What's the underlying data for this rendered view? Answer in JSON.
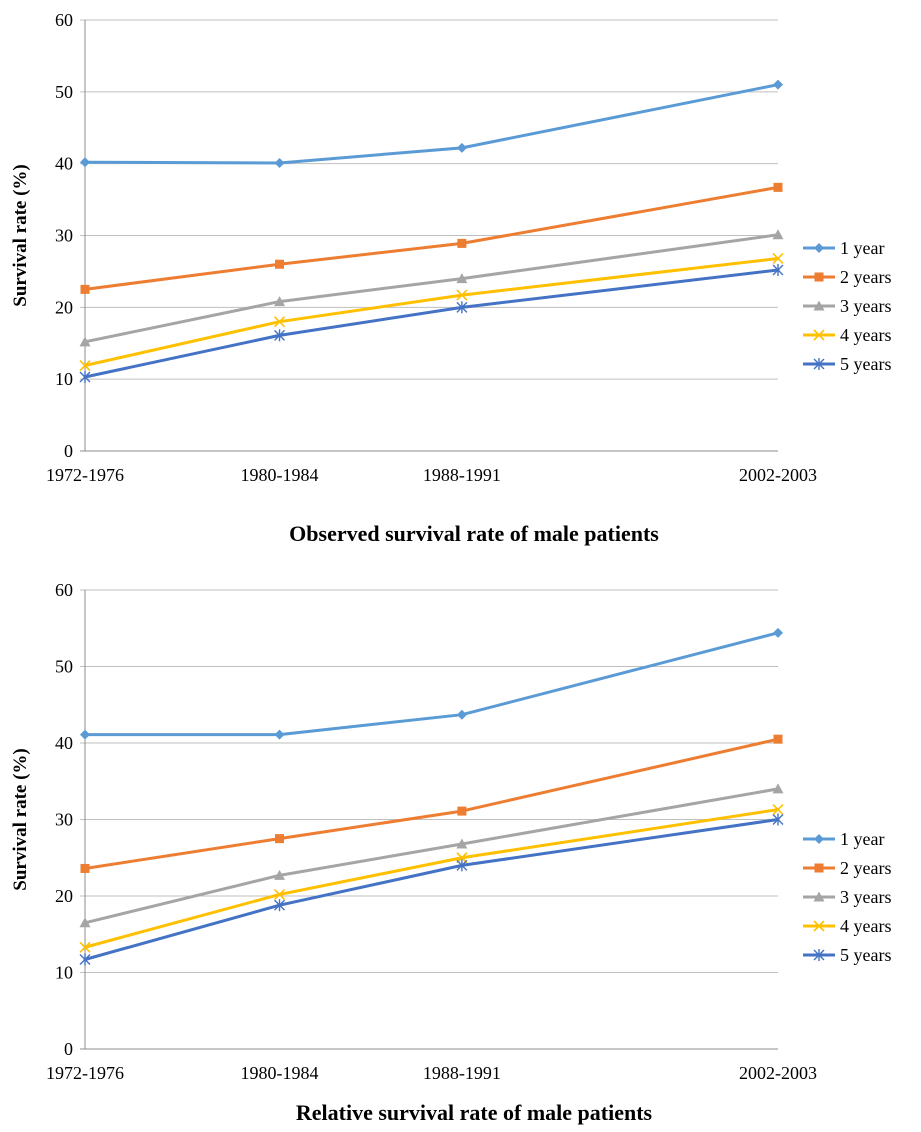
{
  "chart_data": [
    {
      "type": "line",
      "title": "Observed survival rate of male patients",
      "xlabel": "",
      "ylabel": "Survival rate (%)",
      "x": [
        1974,
        1982,
        1989.5,
        2002.5
      ],
      "categories": [
        "1972-1976",
        "1980-1984",
        "1988-1991",
        "2002-2003"
      ],
      "ylim": [
        0,
        60
      ],
      "yticks": [
        0,
        10,
        20,
        30,
        40,
        50,
        60
      ],
      "grid": true,
      "legend": "right",
      "series": [
        {
          "name": "1 year",
          "values": [
            40.2,
            40.1,
            42.2,
            51.0
          ],
          "color": "#5B9BD5",
          "marker": "diamond"
        },
        {
          "name": "2 years",
          "values": [
            22.5,
            26.0,
            28.9,
            36.7
          ],
          "color": "#ED7D31",
          "marker": "square"
        },
        {
          "name": "3 years",
          "values": [
            15.2,
            20.8,
            24.0,
            30.1
          ],
          "color": "#A5A5A5",
          "marker": "triangle"
        },
        {
          "name": "4 years",
          "values": [
            11.9,
            18.0,
            21.7,
            26.8
          ],
          "color": "#FFC000",
          "marker": "x"
        },
        {
          "name": "5 years",
          "values": [
            10.3,
            16.1,
            20.0,
            25.2
          ],
          "color": "#4472C4",
          "marker": "star"
        }
      ]
    },
    {
      "type": "line",
      "title": "Relative survival rate of male patients",
      "xlabel": "",
      "ylabel": "Survival rate (%)",
      "x": [
        1974,
        1982,
        1989.5,
        2002.5
      ],
      "categories": [
        "1972-1976",
        "1980-1984",
        "1988-1991",
        "2002-2003"
      ],
      "ylim": [
        0,
        60
      ],
      "yticks": [
        0,
        10,
        20,
        30,
        40,
        50,
        60
      ],
      "grid": true,
      "legend": "right",
      "series": [
        {
          "name": "1 year",
          "values": [
            41.1,
            41.1,
            43.7,
            54.4
          ],
          "color": "#5B9BD5",
          "marker": "diamond"
        },
        {
          "name": "2 years",
          "values": [
            23.6,
            27.5,
            31.1,
            40.5
          ],
          "color": "#ED7D31",
          "marker": "square"
        },
        {
          "name": "3 years",
          "values": [
            16.5,
            22.7,
            26.8,
            34.0
          ],
          "color": "#A5A5A5",
          "marker": "triangle"
        },
        {
          "name": "4 years",
          "values": [
            13.3,
            20.2,
            25.0,
            31.3
          ],
          "color": "#FFC000",
          "marker": "x"
        },
        {
          "name": "5 years",
          "values": [
            11.7,
            18.8,
            24.0,
            30.0
          ],
          "color": "#4472C4",
          "marker": "star"
        }
      ]
    }
  ]
}
